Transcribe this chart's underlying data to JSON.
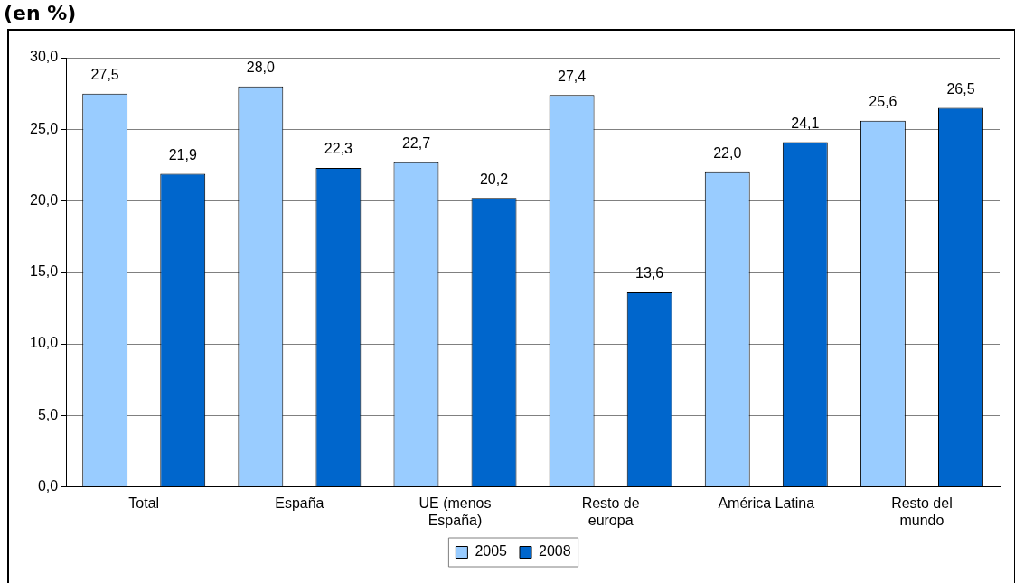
{
  "chart_data": {
    "type": "bar",
    "title": "(en %)",
    "categories": [
      "Total",
      "España",
      "UE (menos España)",
      "Resto de europa",
      "América Latina",
      "Resto del mundo"
    ],
    "series": [
      {
        "name": "2005",
        "color": "#99ccff",
        "values": [
          27.5,
          28.0,
          22.7,
          27.4,
          22.0,
          25.6
        ],
        "value_labels": [
          "27,5",
          "28,0",
          "22,7",
          "27,4",
          "22,0",
          "25,6"
        ]
      },
      {
        "name": "2008",
        "color": "#0066cc",
        "values": [
          21.9,
          22.3,
          20.2,
          13.6,
          24.1,
          26.5
        ],
        "value_labels": [
          "21,9",
          "22,3",
          "20,2",
          "13,6",
          "24,1",
          "26,5"
        ]
      }
    ],
    "ylim": [
      0,
      30
    ],
    "yticks": [
      {
        "value": 0,
        "label": "0,0"
      },
      {
        "value": 5,
        "label": "5,0"
      },
      {
        "value": 10,
        "label": "10,0"
      },
      {
        "value": 15,
        "label": "15,0"
      },
      {
        "value": 20,
        "label": "20,0"
      },
      {
        "value": 25,
        "label": "25,0"
      },
      {
        "value": 30,
        "label": "30,0"
      }
    ],
    "grid": "y",
    "legend": "bottom"
  }
}
